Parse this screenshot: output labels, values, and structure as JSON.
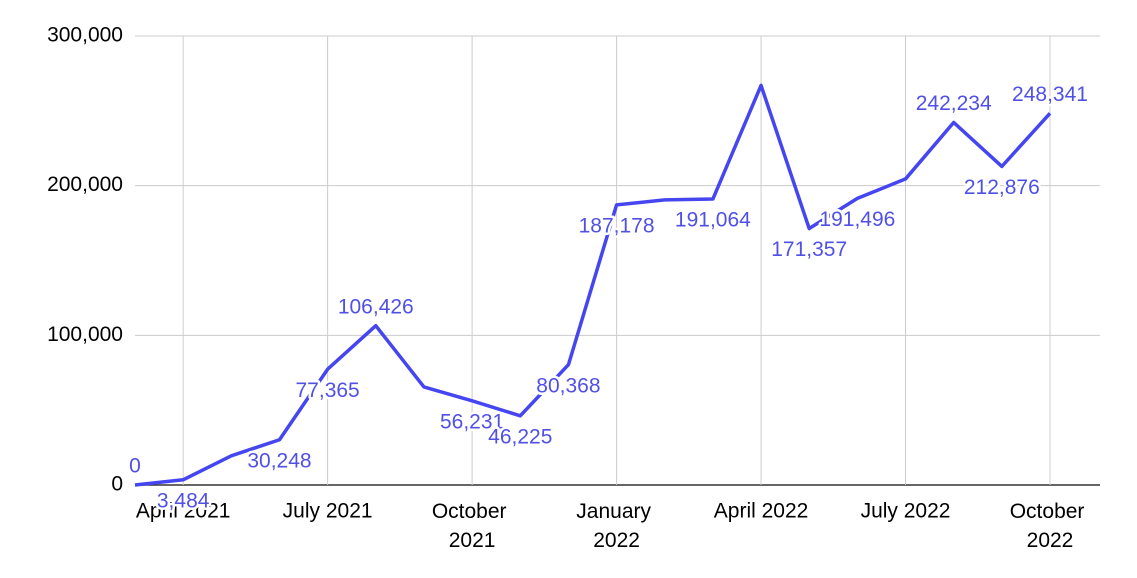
{
  "chart_data": {
    "type": "line",
    "categories": [
      null,
      "April 2021",
      null,
      null,
      "July 2021",
      null,
      null,
      "October 2021",
      null,
      null,
      "January 2022",
      null,
      null,
      "April 2022",
      null,
      null,
      "July 2022",
      null,
      null,
      "October 2022"
    ],
    "series": [
      {
        "color": "#4646f0",
        "values": [
          0,
          3484,
          19500,
          30248,
          77365,
          106426,
          65500,
          56231,
          46225,
          80368,
          187178,
          190500,
          191064,
          267000,
          171357,
          191496,
          204500,
          242234,
          212876,
          248341
        ],
        "value_labels": [
          "0",
          "3,484",
          null,
          "30,248",
          "77,365",
          "106,426",
          null,
          "56,231",
          "46,225",
          "80,368",
          "187,178",
          null,
          "191,064",
          null,
          "171,357",
          "191,496",
          null,
          "242,234",
          "212,876",
          "248,341"
        ]
      }
    ],
    "ylim": [
      0,
      300000
    ],
    "yticks": [
      {
        "value": 0,
        "label": "0"
      },
      {
        "value": 100000,
        "label": "100,000"
      },
      {
        "value": 200000,
        "label": "200,000"
      },
      {
        "value": 300000,
        "label": "300,000"
      }
    ],
    "grid": true
  }
}
